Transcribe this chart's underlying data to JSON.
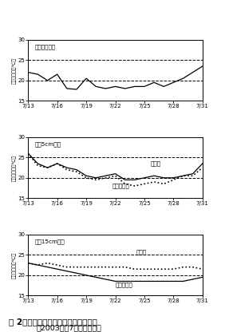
{
  "title": "図 2　地中冷却処理による地温の低下",
  "subtitle": "（2003年〇7月、盛岡市）",
  "ylabel_air": "日平均気温（℃）",
  "ylabel_soil": "日平均地温（℃）",
  "xlabel_ticks": [
    "7/13",
    "7/16",
    "7/19",
    "7/22",
    "7/25",
    "7/28",
    "7/31"
  ],
  "x_ticks_pos": [
    0,
    3,
    6,
    9,
    12,
    15,
    18
  ],
  "panel1_label": "ハウス内気温",
  "panel2_label": "深さ5cm地温",
  "panel3_label": "深さ15cm地温",
  "label_ctrl": "対照区",
  "label_cool": "地中冷却区",
  "p1_y": [
    22.0,
    21.5,
    20.0,
    21.5,
    18.0,
    17.8,
    20.5,
    18.5,
    18.0,
    18.5,
    18.0,
    18.5,
    18.5,
    19.5,
    18.5,
    19.5,
    20.5,
    22.0,
    23.5
  ],
  "p2_ctrl": [
    26.0,
    23.5,
    22.5,
    23.5,
    22.5,
    22.0,
    20.5,
    20.0,
    20.5,
    21.0,
    19.5,
    19.5,
    20.0,
    20.5,
    20.0,
    20.0,
    20.5,
    21.0,
    23.5
  ],
  "p2_cool": [
    26.0,
    23.0,
    22.5,
    23.5,
    22.0,
    21.5,
    20.0,
    19.5,
    20.0,
    20.5,
    18.5,
    18.0,
    18.5,
    19.0,
    18.5,
    19.5,
    20.5,
    20.5,
    22.5
  ],
  "p3_ctrl": [
    23.0,
    22.5,
    23.0,
    22.5,
    22.0,
    22.0,
    22.0,
    22.0,
    22.0,
    22.0,
    22.0,
    21.5,
    21.5,
    21.5,
    21.5,
    21.5,
    22.0,
    22.0,
    21.5
  ],
  "p3_cool": [
    23.0,
    22.5,
    22.0,
    21.5,
    21.0,
    20.5,
    20.0,
    19.5,
    19.0,
    18.5,
    18.5,
    18.5,
    18.5,
    18.5,
    18.5,
    18.5,
    18.5,
    19.0,
    19.5
  ],
  "ylim": [
    15.0,
    30.0
  ],
  "yticks": [
    15.0,
    20.0,
    25.0,
    30.0
  ],
  "hline_y": [
    20.0,
    25.0
  ]
}
